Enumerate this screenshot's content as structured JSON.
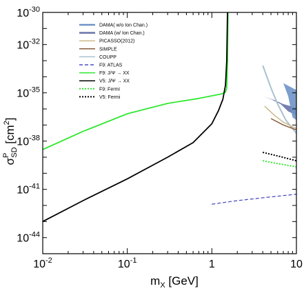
{
  "chart_data": {
    "type": "line",
    "xlabel": {
      "main": "m",
      "sub": "X",
      "rest": " [GeV]"
    },
    "ylabel": {
      "main": "σ",
      "sup": "P",
      "sub": "SD",
      "rest": " [cm",
      "exp": "2",
      "close": "]"
    },
    "x_scale": "log",
    "y_scale": "log",
    "xlim": [
      0.01,
      10
    ],
    "ylim": [
      1e-45,
      1e-30
    ],
    "x_ticks": [
      {
        "value": 0.01,
        "base": "10",
        "exp": "-2"
      },
      {
        "value": 0.1,
        "base": "10",
        "exp": "-1"
      },
      {
        "value": 1,
        "base": "1",
        "exp": ""
      },
      {
        "value": 10,
        "base": "10",
        "exp": ""
      }
    ],
    "y_ticks": [
      {
        "value": 1e-30,
        "base": "10",
        "exp": "-30"
      },
      {
        "value": 1e-32,
        "base": "10",
        "exp": "-32"
      },
      {
        "value": 1e-35,
        "base": "10",
        "exp": "-35"
      },
      {
        "value": 1e-38,
        "base": "10",
        "exp": "-38"
      },
      {
        "value": 1e-41,
        "base": "10",
        "exp": "-41"
      },
      {
        "value": 1e-44,
        "base": "10",
        "exp": "-44"
      }
    ],
    "legend_position": "top-left",
    "legend": [
      {
        "label": "DAMA( w/o Ion Chan.)",
        "color": "#6f93c7",
        "style": "band"
      },
      {
        "label": "DAMA (w/ Ion Chan.)",
        "color": "#6673a8",
        "style": "band"
      },
      {
        "label": "PICASSO(2012)",
        "color": "#cbb98a",
        "style": "line"
      },
      {
        "label": "SIMPLE",
        "color": "#8b5a3c",
        "style": "line"
      },
      {
        "label": "COUPP",
        "color": "#a9c1cf",
        "style": "line"
      },
      {
        "label": "F9: ATLAS",
        "color": "#4a4fc4",
        "style": "dashed"
      },
      {
        "label": "F9: J/Ψ → XX",
        "color": "#2ee82e",
        "style": "solid"
      },
      {
        "label": "V5: J/Ψ → XX",
        "color": "#000000",
        "style": "solid"
      },
      {
        "label": "F9: Fermi",
        "color": "#2ee82e",
        "style": "dotted"
      },
      {
        "label": "V5: Fermi",
        "color": "#000000",
        "style": "dotted"
      }
    ],
    "series": [
      {
        "name": "F9: J/Ψ → XX",
        "color": "#2ee82e",
        "style": "solid",
        "width": 1.8,
        "points": [
          [
            0.01,
            3e-39
          ],
          [
            0.03,
            4e-38
          ],
          [
            0.1,
            5e-37
          ],
          [
            0.3,
            2.2e-36
          ],
          [
            0.7,
            4.5e-36
          ],
          [
            1.0,
            6.5e-36
          ],
          [
            1.3,
            8.5e-36
          ],
          [
            1.45,
            1.1e-35
          ],
          [
            1.5,
            2e-35
          ],
          [
            1.53,
            1e-33
          ],
          [
            1.55,
            1e-30
          ]
        ]
      },
      {
        "name": "V5: J/Ψ → XX",
        "color": "#000000",
        "style": "solid",
        "width": 1.8,
        "points": [
          [
            0.01,
            1e-43
          ],
          [
            0.03,
            2e-42
          ],
          [
            0.1,
            4.5e-41
          ],
          [
            0.3,
            1e-39
          ],
          [
            0.6,
            8e-39
          ],
          [
            1.0,
            1.2e-37
          ],
          [
            1.2,
            8e-37
          ],
          [
            1.35,
            4e-36
          ],
          [
            1.45,
            3e-35
          ],
          [
            1.5,
            1e-33
          ],
          [
            1.53,
            1e-30
          ]
        ]
      },
      {
        "name": "F9: ATLAS",
        "color": "#4a4fc4",
        "style": "dashed",
        "width": 1.3,
        "points": [
          [
            1.0,
            1.2e-42
          ],
          [
            2.0,
            2e-42
          ],
          [
            4.0,
            3e-42
          ],
          [
            10.0,
            5e-42
          ]
        ]
      },
      {
        "name": "F9: Fermi",
        "color": "#2ee82e",
        "style": "dotted",
        "width": 2,
        "points": [
          [
            4.0,
            6e-40
          ],
          [
            6.0,
            4e-40
          ],
          [
            10.0,
            2.5e-40
          ]
        ]
      },
      {
        "name": "V5: Fermi",
        "color": "#000000",
        "style": "dotted",
        "width": 2,
        "points": [
          [
            4.0,
            2e-39
          ],
          [
            6.0,
            1.2e-39
          ],
          [
            10.0,
            6e-40
          ]
        ]
      },
      {
        "name": "COUPP",
        "color": "#a9c1cf",
        "style": "solid",
        "width": 2,
        "points": [
          [
            4.0,
            5e-34
          ],
          [
            5.0,
            2e-35
          ],
          [
            6.0,
            2e-36
          ],
          [
            7.5,
            2e-37
          ],
          [
            10.0,
            3e-38
          ]
        ]
      },
      {
        "name": "PICASSO(2012)",
        "color": "#cbb98a",
        "style": "solid",
        "width": 1.5,
        "points": [
          [
            4.2,
            1.5e-36
          ],
          [
            5.5,
            4e-37
          ],
          [
            7.0,
            1.5e-37
          ],
          [
            10.0,
            6e-38
          ]
        ]
      },
      {
        "name": "SIMPLE",
        "color": "#8b5a3c",
        "style": "solid",
        "width": 1.5,
        "points": [
          [
            5.0,
            2.5e-37
          ],
          [
            7.0,
            1e-37
          ],
          [
            10.0,
            5e-38
          ]
        ]
      }
    ],
    "bands": [
      {
        "name": "DAMA (w/ Ion Chan.)",
        "color": "#6673a8",
        "points": [
          [
            4.0,
            6e-36
          ],
          [
            5.5,
            3.5e-36
          ],
          [
            7.0,
            2e-36
          ],
          [
            10.0,
            1.2e-36
          ],
          [
            10.0,
            4e-37
          ],
          [
            8.0,
            7e-37
          ],
          [
            6.5,
            2e-36
          ],
          [
            5.0,
            4e-36
          ]
        ]
      },
      {
        "name": "DAMA( w/o Ion Chan.)",
        "color": "#6f93c7",
        "points": [
          [
            7.0,
            4e-35
          ],
          [
            10.0,
            1.5e-35
          ],
          [
            10.0,
            2e-37
          ],
          [
            9.0,
            3e-37
          ],
          [
            8.0,
            6e-36
          ]
        ]
      }
    ]
  }
}
